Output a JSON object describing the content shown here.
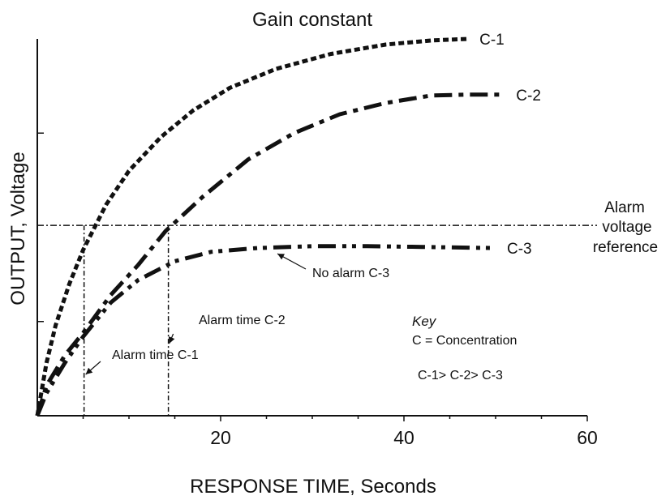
{
  "chart_data": {
    "type": "line",
    "title": "Gain constant",
    "xlabel": "RESPONSE TIME, Seconds",
    "ylabel": "OUTPUT,  Voltage",
    "xlim": [
      0,
      60
    ],
    "ylim": [
      0,
      1
    ],
    "x_tick_labels": [
      "20",
      "40",
      "60"
    ],
    "x_ticks": [
      20,
      40,
      60
    ],
    "y_tick_labels": [],
    "grid": false,
    "series": [
      {
        "name": "C-1",
        "color": "#111111",
        "dash": "short-dash",
        "points": [
          [
            0,
            0
          ],
          [
            1,
            0.14
          ],
          [
            2,
            0.24
          ],
          [
            3.5,
            0.35
          ],
          [
            5,
            0.44
          ],
          [
            7.5,
            0.56
          ],
          [
            10,
            0.65
          ],
          [
            13.5,
            0.74
          ],
          [
            17,
            0.81
          ],
          [
            21,
            0.87
          ],
          [
            26,
            0.92
          ],
          [
            32,
            0.96
          ],
          [
            38,
            0.985
          ],
          [
            43,
            0.996
          ],
          [
            47,
            1.0
          ]
        ]
      },
      {
        "name": "C-2",
        "color": "#111111",
        "dash": "dash-dot",
        "points": [
          [
            0,
            0
          ],
          [
            1,
            0.08
          ],
          [
            3,
            0.16
          ],
          [
            5,
            0.22
          ],
          [
            8,
            0.32
          ],
          [
            11,
            0.4
          ],
          [
            14,
            0.49
          ],
          [
            18,
            0.58
          ],
          [
            23,
            0.68
          ],
          [
            28,
            0.75
          ],
          [
            33,
            0.8
          ],
          [
            38,
            0.83
          ],
          [
            43,
            0.85
          ],
          [
            47,
            0.852
          ],
          [
            51,
            0.852
          ]
        ]
      },
      {
        "name": "C-3",
        "color": "#111111",
        "dash": "dash-dot-dot",
        "points": [
          [
            0,
            0
          ],
          [
            1,
            0.06
          ],
          [
            3,
            0.14
          ],
          [
            5,
            0.21
          ],
          [
            8,
            0.3
          ],
          [
            11,
            0.36
          ],
          [
            15,
            0.41
          ],
          [
            19,
            0.435
          ],
          [
            24,
            0.445
          ],
          [
            30,
            0.45
          ],
          [
            36,
            0.45
          ],
          [
            42,
            0.448
          ],
          [
            47,
            0.446
          ],
          [
            50,
            0.445
          ]
        ]
      }
    ],
    "alarm_reference": {
      "y": 0.505,
      "label_line1": "Alarm",
      "label_line2": "voltage",
      "label_line3": "reference"
    },
    "alarm_markers": [
      {
        "x": 5.1,
        "label": "Alarm time C-1"
      },
      {
        "x": 14.3,
        "label": "Alarm time C-2"
      }
    ],
    "annotations": {
      "no_alarm": "No alarm C-3",
      "key_title": "Key",
      "key_line1": "C = Concentration",
      "key_line2": "C-1> C-2> C-3"
    }
  }
}
